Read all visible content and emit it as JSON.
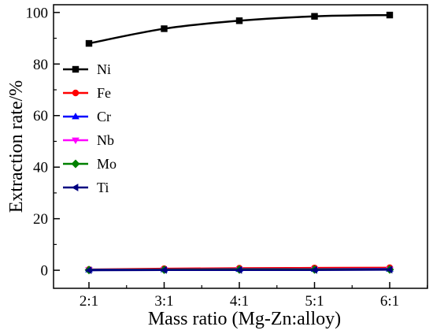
{
  "chart_data": {
    "type": "line",
    "xlabel": "Mass ratio (Mg-Zn:alloy)",
    "ylabel": "Extraction rate/%",
    "categories": [
      "2:1",
      "3:1",
      "4:1",
      "5:1",
      "6:1"
    ],
    "ylim": [
      -7,
      103
    ],
    "yticks": [
      0,
      20,
      40,
      60,
      80,
      100
    ],
    "grid": false,
    "legend": "left",
    "series": [
      {
        "name": "Ni",
        "values": [
          88.0,
          93.7,
          96.8,
          98.5,
          99.0
        ],
        "color": "#000000",
        "marker": "square"
      },
      {
        "name": "Fe",
        "values": [
          0.3,
          0.6,
          0.8,
          0.9,
          1.0
        ],
        "color": "#ff0000",
        "marker": "circle"
      },
      {
        "name": "Cr",
        "values": [
          0.2,
          0.3,
          0.4,
          0.4,
          0.5
        ],
        "color": "#0000ff",
        "marker": "triangle-up"
      },
      {
        "name": "Nb",
        "values": [
          0.1,
          0.2,
          0.2,
          0.3,
          0.3
        ],
        "color": "#ff00ff",
        "marker": "triangle-down"
      },
      {
        "name": "Mo",
        "values": [
          0.1,
          0.2,
          0.3,
          0.3,
          0.3
        ],
        "color": "#008000",
        "marker": "diamond"
      },
      {
        "name": "Ti",
        "values": [
          0.0,
          0.1,
          0.1,
          0.1,
          0.2
        ],
        "color": "#000080",
        "marker": "triangle-left"
      }
    ]
  }
}
